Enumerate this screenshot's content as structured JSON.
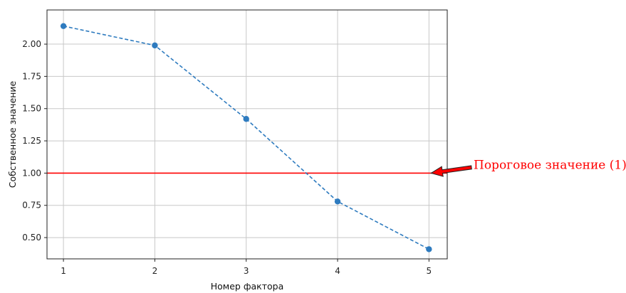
{
  "chart_data": {
    "type": "line",
    "xlabel": "Номер фактора",
    "ylabel": "Собственное значение",
    "x": [
      1,
      2,
      3,
      4,
      5
    ],
    "series": [
      {
        "values": [
          2.14,
          1.99,
          1.42,
          0.78,
          0.41
        ],
        "color": "#2e7bbf",
        "linestyle": "dashed",
        "marker": "circle"
      }
    ],
    "x_ticks": [
      "1",
      "2",
      "3",
      "4",
      "5"
    ],
    "y_ticks": [
      "0.50",
      "0.75",
      "1.00",
      "1.25",
      "1.50",
      "1.75",
      "2.00"
    ],
    "xlim": [
      0.82,
      5.2
    ],
    "ylim": [
      0.335,
      2.265
    ],
    "grid": true,
    "threshold": {
      "value": 1.0,
      "color": "#ff0000"
    },
    "annotation": {
      "text": "Пороговое значение (1)",
      "color": "#ff0000",
      "arrow_to": [
        5,
        1.0
      ]
    }
  }
}
